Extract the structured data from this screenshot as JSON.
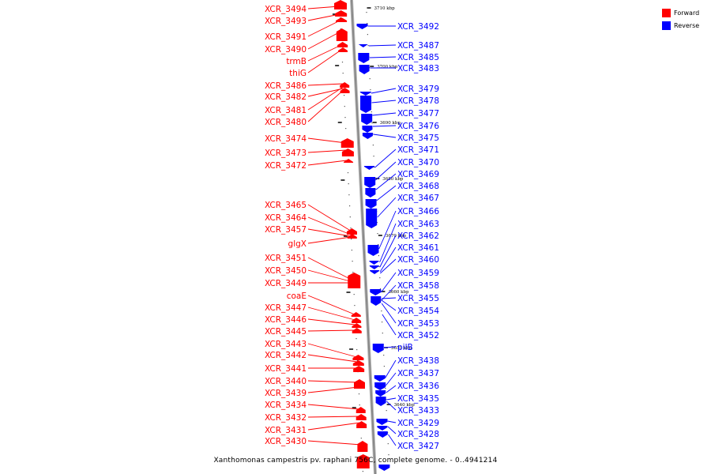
{
  "caption": "Xanthomonas campestris pv. raphani 756C, complete genome. - 0..4941214",
  "colors": {
    "forward": "#ff0000",
    "reverse": "#0000ff",
    "axis": "#888888"
  },
  "legend": [
    {
      "label": "Forward",
      "color": "#ff0000"
    },
    {
      "label": "Reverse",
      "color": "#0000ff"
    }
  ],
  "scale_ticks": [
    "3710 kbp",
    "3700 kbp",
    "3690 kbp",
    "3680 kbp",
    "3670 kbp",
    "3660 kbp",
    "3650 kbp",
    "3640 kbp"
  ],
  "forward_genes": [
    "XCR_3494",
    "XCR_3493",
    "XCR_3491",
    "XCR_3490",
    "trmB",
    "thiG",
    "XCR_3486",
    "XCR_3482",
    "XCR_3481",
    "XCR_3480",
    "XCR_3474",
    "XCR_3473",
    "XCR_3472",
    "XCR_3465",
    "XCR_3464",
    "XCR_3457",
    "glgX",
    "XCR_3451",
    "XCR_3450",
    "XCR_3449",
    "coaE",
    "XCR_3447",
    "XCR_3446",
    "XCR_3445",
    "XCR_3443",
    "XCR_3442",
    "XCR_3441",
    "XCR_3440",
    "XCR_3439",
    "XCR_3434",
    "XCR_3432",
    "XCR_3431",
    "XCR_3430"
  ],
  "reverse_genes": [
    "XCR_3492",
    "XCR_3487",
    "XCR_3485",
    "XCR_3483",
    "XCR_3479",
    "XCR_3478",
    "XCR_3477",
    "XCR_3476",
    "XCR_3475",
    "XCR_3471",
    "XCR_3470",
    "XCR_3469",
    "XCR_3468",
    "XCR_3467",
    "XCR_3466",
    "XCR_3463",
    "XCR_3462",
    "XCR_3461",
    "XCR_3460",
    "XCR_3459",
    "XCR_3458",
    "XCR_3455",
    "XCR_3454",
    "XCR_3453",
    "XCR_3452",
    "pilB",
    "XCR_3438",
    "XCR_3437",
    "XCR_3436",
    "XCR_3435",
    "XCR_3433",
    "XCR_3429",
    "XCR_3428",
    "XCR_3427"
  ]
}
